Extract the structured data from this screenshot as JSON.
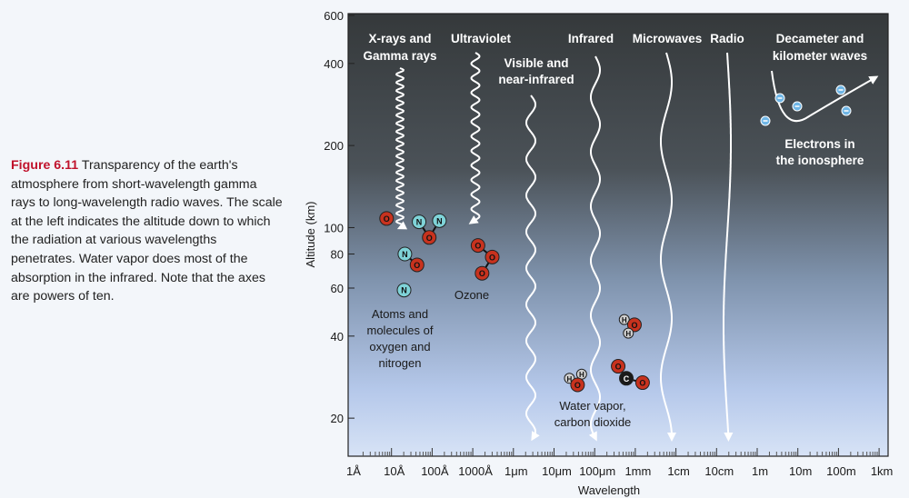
{
  "caption": {
    "figure_label": "Figure 6.11",
    "text": "Transparency of the earth's atmosphere from short-wavelength gamma rays to long-wavelength radio waves. The scale at the left indicates the altitude down to which the radiation at various wavelengths penetrates. Water vapor does most of the absorption in the infrared. Note that the axes are powers of ten."
  },
  "chart_data": {
    "type": "diagram",
    "xlabel": "Wavelength",
    "ylabel": "Altitude (km)",
    "x_scale": "log",
    "y_scale": "log",
    "xticks": [
      "1Å",
      "10Å",
      "100Å",
      "1000Å",
      "1μm",
      "10μm",
      "100μm",
      "1mm",
      "1cm",
      "10cm",
      "1m",
      "10m",
      "100m",
      "1km"
    ],
    "yticks": [
      600,
      400,
      200,
      100,
      80,
      60,
      40,
      20
    ],
    "ylim": [
      14.6,
      600
    ],
    "bands": [
      {
        "name_lines": [
          "X-rays and",
          "Gamma rays"
        ],
        "penetration_altitude_km": 100,
        "x_decade": 1.2
      },
      {
        "name_lines": [
          "Ultraviolet"
        ],
        "penetration_altitude_km": 105,
        "x_decade": 3.1
      },
      {
        "name_lines": [
          "Visible and",
          "near-infrared"
        ],
        "penetration_altitude_km": 17,
        "x_decade": 4.45
      },
      {
        "name_lines": [
          "Infrared"
        ],
        "penetration_altitude_km": 17,
        "x_decade": 6.05
      },
      {
        "name_lines": [
          "Microwaves"
        ],
        "penetration_altitude_km": 17,
        "x_decade": 7.8
      },
      {
        "name_lines": [
          "Radio"
        ],
        "penetration_altitude_km": 17,
        "x_decade": 9.3
      }
    ],
    "annotations": {
      "decameter": [
        "Decameter and",
        "kilometer waves"
      ],
      "electrons": [
        "Electrons in",
        "the ionosphere"
      ],
      "atoms": [
        "Atoms and",
        "molecules of",
        "oxygen and",
        "nitrogen"
      ],
      "ozone": [
        "Ozone"
      ],
      "water": [
        "Water vapor,",
        "carbon dioxide"
      ]
    },
    "molecules": [
      {
        "el": "O",
        "alt": 108,
        "xd": 0.7
      },
      {
        "el": "N",
        "alt": 105,
        "xd": 1.5
      },
      {
        "el": "N",
        "alt": 106,
        "xd": 2.0
      },
      {
        "el": "O",
        "alt": 92,
        "xd": 1.75
      },
      {
        "el": "N",
        "alt": 80,
        "xd": 1.15
      },
      {
        "el": "O",
        "alt": 73,
        "xd": 1.45
      },
      {
        "el": "N",
        "alt": 59,
        "xd": 1.13
      },
      {
        "el": "O",
        "alt": 86,
        "xd": 2.95
      },
      {
        "el": "O",
        "alt": 78,
        "xd": 3.3
      },
      {
        "el": "O",
        "alt": 68,
        "xd": 3.05
      },
      {
        "el": "H",
        "alt": 46,
        "xd": 6.55
      },
      {
        "el": "O",
        "alt": 44,
        "xd": 6.8
      },
      {
        "el": "H",
        "alt": 41,
        "xd": 6.65
      },
      {
        "el": "O",
        "alt": 31,
        "xd": 6.4
      },
      {
        "el": "C",
        "alt": 28,
        "xd": 6.6
      },
      {
        "el": "O",
        "alt": 27,
        "xd": 7.0
      },
      {
        "el": "H",
        "alt": 28,
        "xd": 5.2
      },
      {
        "el": "H",
        "alt": 29,
        "xd": 5.5
      },
      {
        "el": "O",
        "alt": 26.5,
        "xd": 5.4
      }
    ],
    "electrons_count": 5
  },
  "colors": {
    "O": "#c8321e",
    "N": "#7fd3d8",
    "H": "#cfcfcf",
    "C": "#1a1a1a",
    "electron": "#6fb6e6",
    "caption_accent": "#c0122c"
  }
}
